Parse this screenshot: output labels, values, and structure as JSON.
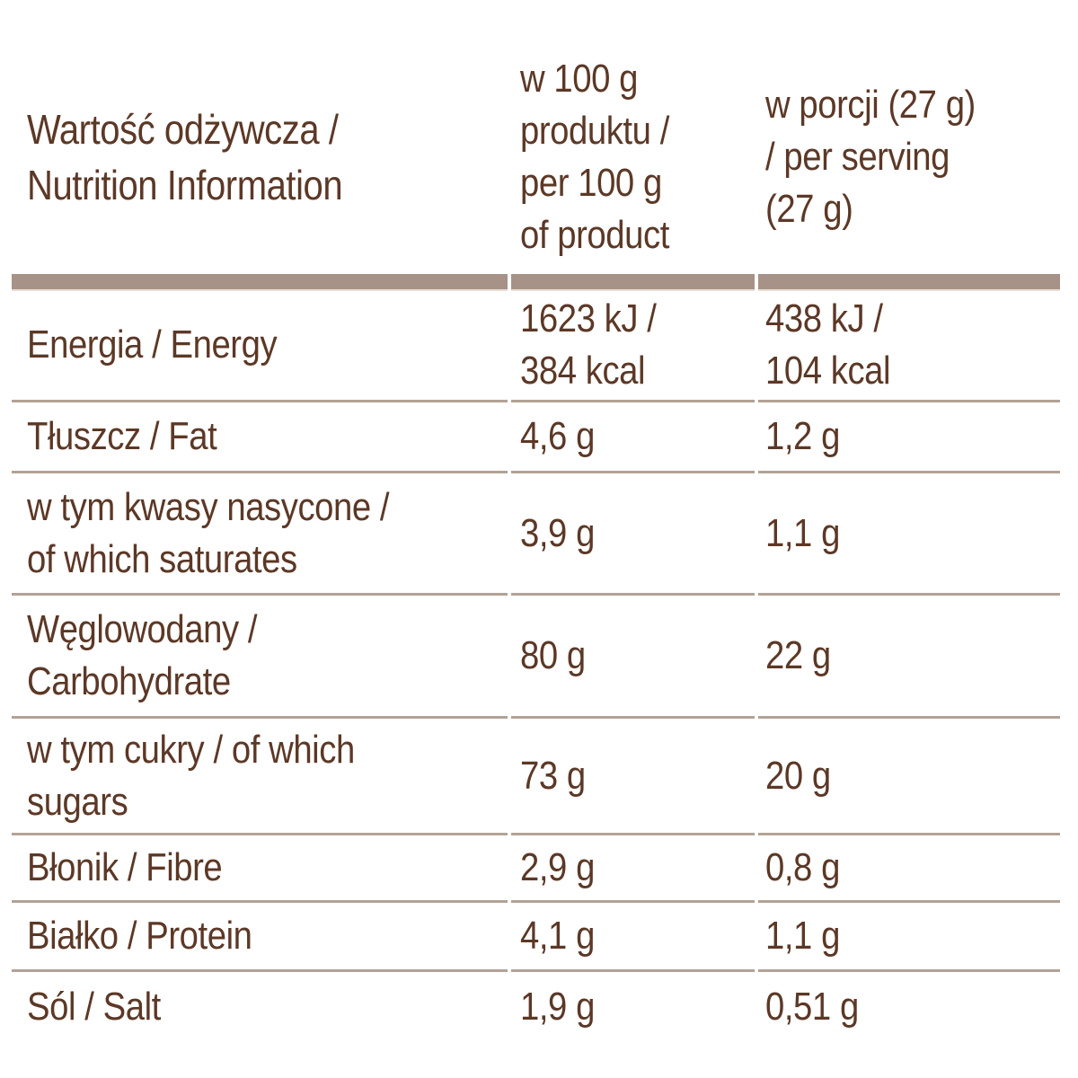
{
  "header": {
    "nutrient": "Wartość odżywcza /\nNutrition Information",
    "per_100g": "w 100 g\nproduktu /\nper 100 g\nof product",
    "per_serving": "w porcji (27 g)\n/ per serving\n(27 g)"
  },
  "rows": [
    {
      "label": "Energia / Energy",
      "per_100g": "1623 kJ /\n384 kcal",
      "per_serving": "438 kJ /\n104 kcal"
    },
    {
      "label": "Tłuszcz / Fat",
      "per_100g": "4,6 g",
      "per_serving": "1,2 g"
    },
    {
      "label": "w tym kwasy nasycone /\nof which saturates",
      "per_100g": "3,9 g",
      "per_serving": "1,1 g"
    },
    {
      "label": "Węglowodany /\nCarbohydrate",
      "per_100g": "80 g",
      "per_serving": "22 g"
    },
    {
      "label": "w tym cukry / of which\nsugars",
      "per_100g": "73 g",
      "per_serving": "20 g"
    },
    {
      "label": "Błonik / Fibre",
      "per_100g": "2,9 g",
      "per_serving": "0,8 g"
    },
    {
      "label": "Białko / Protein",
      "per_100g": "4,1 g",
      "per_serving": "1,1 g"
    },
    {
      "label": "Sól / Salt",
      "per_100g": "1,9 g",
      "per_serving": "0,51 g"
    }
  ],
  "colors": {
    "text": "#5c3826",
    "separator_bar": "#a79287",
    "row_line": "#b3a296",
    "background": "#ffffff"
  }
}
